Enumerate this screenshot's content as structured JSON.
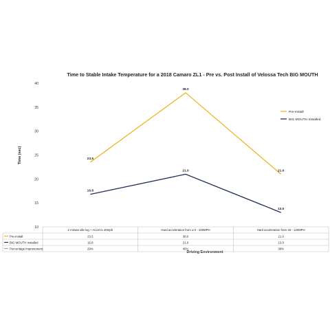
{
  "chart_data": {
    "type": "line",
    "title": "Time to Stable Intake Temperature for a 2018 Camaro ZL1 - Pre vs. Post Install of Velossa Tech BIG MOUTH",
    "xlabel": "Driving Environment",
    "ylabel": "Time (sec)",
    "ylim": [
      10,
      40
    ],
    "yticks": [
      10,
      15,
      20,
      25,
      30,
      35,
      40
    ],
    "grid": false,
    "legend_position": "right",
    "categories": [
      "2 minute idle log + Accel to 40mph",
      "Hard acceleration from a 0 - 100MPH",
      "Hard acceleration from 40 - 120MPH"
    ],
    "series": [
      {
        "name": "Pre-Install",
        "color": "#f0b429",
        "values": [
          23.5,
          38.0,
          21.0
        ],
        "labels": [
          "23.5",
          "38.0",
          "21.0"
        ]
      },
      {
        "name": "BIG MOUTH Installed",
        "color": "#1f2d5c",
        "values": [
          16.8,
          21.0,
          13.0
        ],
        "labels": [
          "16.8",
          "21.0",
          "13.0"
        ]
      }
    ],
    "table": {
      "rows": [
        {
          "label": "Pre-Install",
          "color": "#f0b429",
          "cells": [
            "23.5",
            "38.0",
            "21.0"
          ]
        },
        {
          "label": "BIG MOUTH Installed",
          "color": "#1f2d5c",
          "cells": [
            "16.8",
            "21.0",
            "13.0"
          ]
        },
        {
          "label": "Percentage Improvement",
          "color": "#a6a6a6",
          "cells": [
            "29%",
            "45%",
            "38%"
          ]
        }
      ]
    }
  }
}
